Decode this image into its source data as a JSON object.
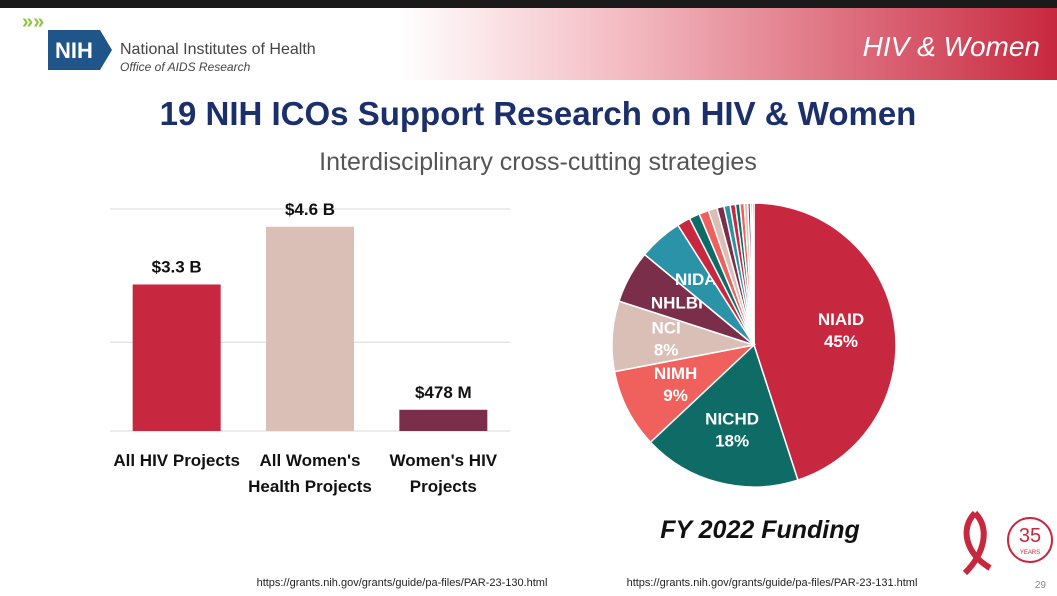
{
  "header": {
    "logo": "NIH",
    "org": "National Institutes of Health",
    "office": "Office of AIDS Research",
    "tag": "HIV & Women"
  },
  "title": "19 NIH ICOs Support Research on HIV & Women",
  "subtitle": "Interdisciplinary cross-cutting strategies",
  "chart_data": [
    {
      "type": "bar",
      "categories": [
        "All HIV Projects",
        "All Women's Health Projects",
        "Women's HIV Projects"
      ],
      "values": [
        3.3,
        4.6,
        0.478
      ],
      "value_labels": [
        "$3.3 B",
        "$4.6 B",
        "$478 M"
      ],
      "colors": [
        "#c8283f",
        "#d9bfb6",
        "#7a2e4a"
      ],
      "ylim": [
        0,
        5
      ],
      "yticks": [
        0,
        2,
        5
      ],
      "grid": true,
      "tick_labels": false
    },
    {
      "type": "pie",
      "caption": "FY 2022 Funding",
      "labels": [
        "NIAID",
        "NICHD",
        "NIMH",
        "NCI",
        "NHLBI",
        "NIDA",
        null,
        null,
        null,
        null,
        null,
        null,
        null,
        null,
        null,
        null,
        null,
        null,
        null
      ],
      "values": [
        45,
        18,
        9,
        8,
        6,
        5,
        1.5,
        1.2,
        1.1,
        1,
        0.8,
        0.7,
        0.6,
        0.5,
        0.5,
        0.4,
        0.3,
        0.2,
        0.2
      ],
      "value_labels": [
        "45%",
        "18%",
        "9%",
        "8%",
        null,
        null,
        null,
        null,
        null,
        null,
        null,
        null,
        null,
        null,
        null,
        null,
        null,
        null,
        null
      ],
      "colors": [
        "#c8283f",
        "#0e6b66",
        "#f0605d",
        "#d9bfb6",
        "#7a2e4a",
        "#2b93a8",
        "#c8283f",
        "#0e6b66",
        "#f0605d",
        "#d9bfb6",
        "#7a2e4a",
        "#2b93a8",
        "#c8283f",
        "#0e6b66",
        "#f0605d",
        "#d9bfb6",
        "#7a2e4a",
        "#2b93a8",
        "#c8283f"
      ]
    }
  ],
  "links": [
    "https://grants.nih.gov/grants/guide/pa-files/PAR-23-130.html",
    "https://grants.nih.gov/grants/guide/pa-files/PAR-23-131.html"
  ],
  "badge": {
    "number": "35",
    "text": "YEARS"
  },
  "page_number": "29"
}
